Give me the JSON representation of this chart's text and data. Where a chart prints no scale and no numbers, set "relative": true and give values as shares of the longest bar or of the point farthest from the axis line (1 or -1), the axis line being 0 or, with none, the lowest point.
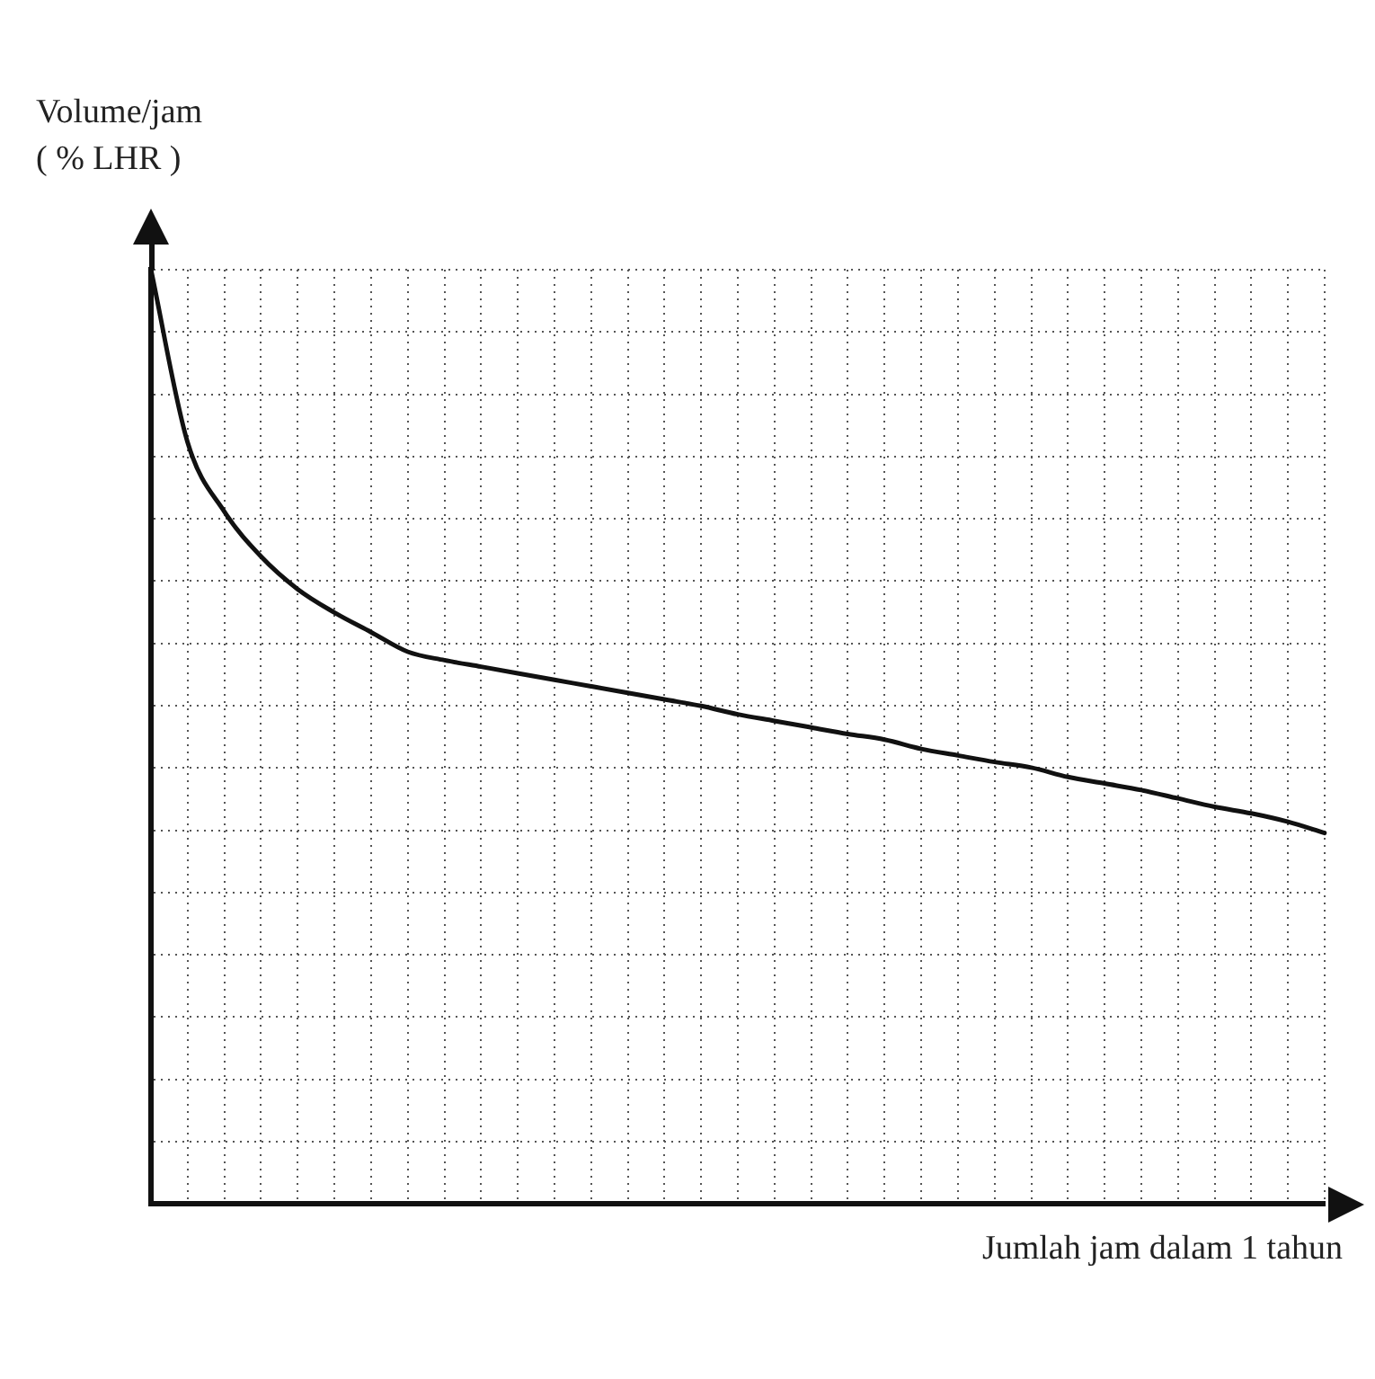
{
  "chart_data": {
    "type": "line",
    "relative": true,
    "xlabel": "Jumlah jam dalam 1 tahun",
    "ylabel": "Volume/jam\n( % LHR )",
    "grid": true,
    "legend": false,
    "marker": "none",
    "line_style": "solid",
    "categories": [
      null,
      null,
      null,
      null,
      null,
      null,
      null,
      null,
      null,
      null,
      null,
      null,
      null,
      null,
      null,
      null,
      null,
      null,
      null,
      null,
      null,
      null,
      null,
      null,
      null,
      null,
      null,
      null,
      null,
      null,
      null,
      null,
      null
    ],
    "series": [
      {
        "color": "#111111",
        "values": [
          1,
          0.815,
          0.741,
          0.693,
          0.658,
          0.633,
          0.612,
          0.591,
          0.582,
          0.575,
          0.568,
          0.561,
          0.554,
          0.547,
          0.54,
          0.533,
          0.524,
          0.517,
          0.51,
          0.503,
          0.497,
          0.487,
          0.48,
          0.473,
          0.467,
          0.457,
          0.45,
          0.443,
          0.434,
          0.425,
          0.418,
          0.409,
          0.397
        ]
      }
    ]
  }
}
